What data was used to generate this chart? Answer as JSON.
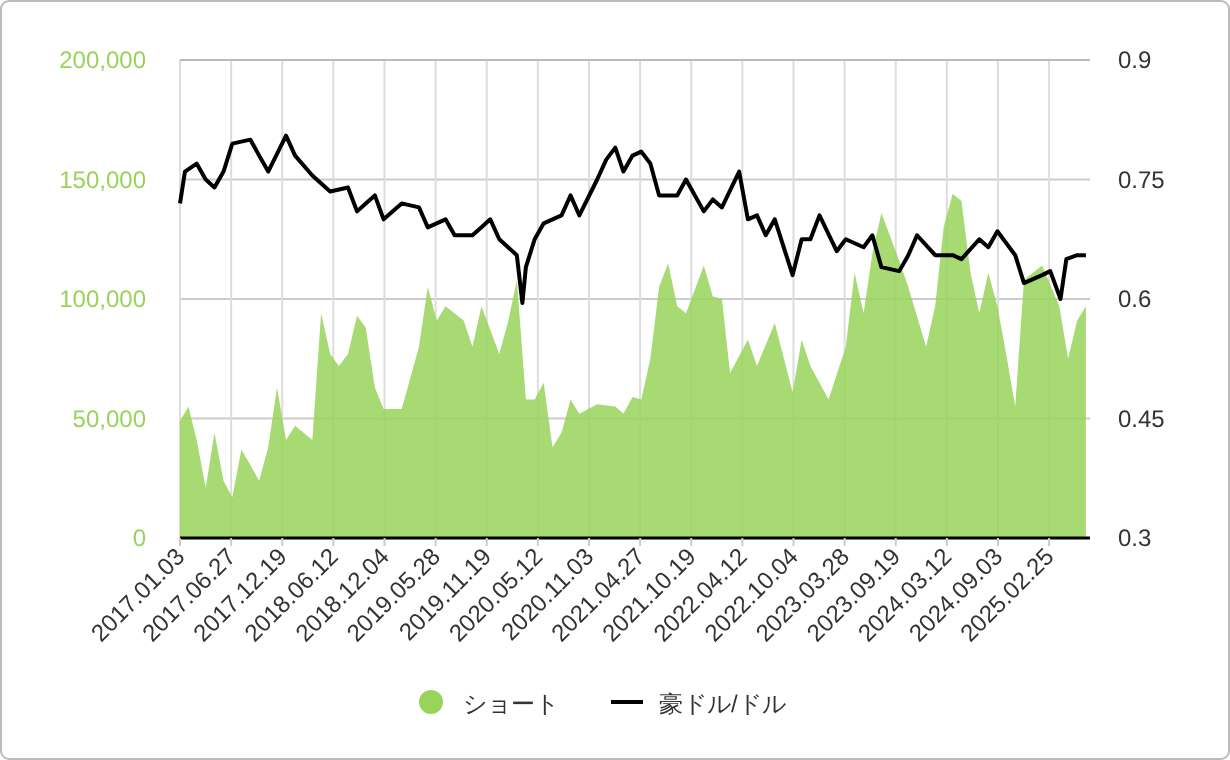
{
  "chart_data": {
    "type": "area",
    "xlim": [
      "2017-01-03",
      "2025-07-15"
    ],
    "xticks": [
      {
        "value": "2017-01-03",
        "label": "2017.01.03"
      },
      {
        "value": "2017-06-27",
        "label": "2017.06.27"
      },
      {
        "value": "2017-12-19",
        "label": "2017.12.19"
      },
      {
        "value": "2018-06-12",
        "label": "2018.06.12"
      },
      {
        "value": "2018-12-04",
        "label": "2018.12.04"
      },
      {
        "value": "2019-05-28",
        "label": "2019.05.28"
      },
      {
        "value": "2019-11-19",
        "label": "2019.11.19"
      },
      {
        "value": "2020-05-12",
        "label": "2020.05.12"
      },
      {
        "value": "2020-11-03",
        "label": "2020.11.03"
      },
      {
        "value": "2021-04-27",
        "label": "2021.04.27"
      },
      {
        "value": "2021-10-19",
        "label": "2021.10.19"
      },
      {
        "value": "2022-04-12",
        "label": "2022.04.12"
      },
      {
        "value": "2022-10-04",
        "label": "2022.10.04"
      },
      {
        "value": "2023-03-28",
        "label": "2023.03.28"
      },
      {
        "value": "2023-09-19",
        "label": "2023.09.19"
      },
      {
        "value": "2024-03-12",
        "label": "2024.03.12"
      },
      {
        "value": "2024-09-03",
        "label": "2024.09.03"
      },
      {
        "value": "2025-02-25",
        "label": "2025.02.25"
      }
    ],
    "ylim": [
      0,
      200000
    ],
    "yticks": [
      {
        "value": 0,
        "label": "0"
      },
      {
        "value": 50000,
        "label": "50,000"
      },
      {
        "value": 100000,
        "label": "100,000"
      },
      {
        "value": 150000,
        "label": "150,000"
      },
      {
        "value": 200000,
        "label": "200,000"
      }
    ],
    "y2lim": [
      0.3,
      0.9
    ],
    "y2ticks": [
      0.3,
      0.45,
      0.6,
      0.75,
      0.9
    ],
    "grid": true,
    "legend": "bottom",
    "series": [
      {
        "name": "ショート",
        "color": "#99d35a",
        "x": [
          "2017-01-03",
          "2017-02",
          "2017-03",
          "2017-04",
          "2017-05",
          "2017-06",
          "2017-07",
          "2017-08",
          "2017-10",
          "2017-11",
          "2017-12",
          "2018-01",
          "2018-02",
          "2018-04",
          "2018-05",
          "2018-06",
          "2018-07",
          "2018-08",
          "2018-09",
          "2018-10",
          "2018-11",
          "2018-12",
          "2019-02",
          "2019-04",
          "2019-05",
          "2019-06",
          "2019-07",
          "2019-09",
          "2019-10",
          "2019-11",
          "2020-01",
          "2020-02",
          "2020-03",
          "2020-04",
          "2020-05",
          "2020-06",
          "2020-07",
          "2020-08",
          "2020-09",
          "2020-10",
          "2020-12",
          "2021-02",
          "2021-03",
          "2021-04",
          "2021-05",
          "2021-06",
          "2021-07",
          "2021-08",
          "2021-09",
          "2021-10",
          "2021-12",
          "2022-01",
          "2022-02",
          "2022-03",
          "2022-05",
          "2022-06",
          "2022-08",
          "2022-10",
          "2022-11",
          "2022-12",
          "2023-02",
          "2023-04",
          "2023-05",
          "2023-06",
          "2023-07",
          "2023-08",
          "2023-10",
          "2023-11",
          "2024-01",
          "2024-02",
          "2024-03",
          "2024-04",
          "2024-05",
          "2024-06",
          "2024-07",
          "2024-08",
          "2024-09",
          "2024-10",
          "2024-11",
          "2024-12",
          "2025-02",
          "2025-04",
          "2025-05",
          "2025-06",
          "2025-07"
        ],
        "values": [
          49000,
          55000,
          41000,
          21000,
          44000,
          24000,
          17000,
          37000,
          24000,
          38000,
          63000,
          41000,
          47000,
          41000,
          94000,
          77000,
          72000,
          77000,
          93000,
          88000,
          63000,
          54000,
          54000,
          80000,
          105000,
          91000,
          97000,
          91000,
          80000,
          97000,
          77000,
          91000,
          108000,
          58000,
          58000,
          65000,
          38000,
          44000,
          58000,
          52000,
          56000,
          55000,
          52000,
          59000,
          58000,
          75000,
          105000,
          115000,
          97000,
          94000,
          114000,
          101000,
          100000,
          69000,
          83000,
          72000,
          90000,
          61000,
          83000,
          72000,
          58000,
          80000,
          111000,
          94000,
          119000,
          136000,
          116000,
          105000,
          80000,
          97000,
          130000,
          144000,
          141000,
          111000,
          94000,
          111000,
          97000,
          77000,
          55000,
          108000,
          114000,
          97000,
          75000,
          91000,
          97000
        ]
      },
      {
        "name": "豪ドル/ドル",
        "type": "line",
        "axis": "y2",
        "color": "#000000",
        "line_style": "solid",
        "x": [
          "2017-01-03",
          "2017-01-20",
          "2017-03",
          "2017-04",
          "2017-05",
          "2017-06",
          "2017-07",
          "2017-09",
          "2017-10",
          "2017-11",
          "2018-01",
          "2018-02",
          "2018-04",
          "2018-06",
          "2018-08",
          "2018-09",
          "2018-10",
          "2018-11",
          "2018-12",
          "2019-02",
          "2019-04",
          "2019-05",
          "2019-07",
          "2019-08",
          "2019-10",
          "2019-11",
          "2019-12",
          "2020-01",
          "2020-03-01",
          "2020-03-20",
          "2020-04",
          "2020-05",
          "2020-06",
          "2020-08",
          "2020-09",
          "2020-10",
          "2020-12",
          "2021-01",
          "2021-02",
          "2021-03",
          "2021-04",
          "2021-05",
          "2021-06",
          "2021-07",
          "2021-09",
          "2021-10",
          "2021-12",
          "2022-01",
          "2022-02",
          "2022-04",
          "2022-05",
          "2022-06",
          "2022-07",
          "2022-08",
          "2022-10",
          "2022-11",
          "2022-12",
          "2023-01",
          "2023-03",
          "2023-04",
          "2023-06",
          "2023-07",
          "2023-08",
          "2023-10",
          "2023-11",
          "2023-12",
          "2024-02",
          "2024-04",
          "2024-05",
          "2024-07",
          "2024-08",
          "2024-09",
          "2024-11",
          "2024-12",
          "2025-02",
          "2025-03",
          "2025-04-05",
          "2025-04-25",
          "2025-06",
          "2025-07"
        ],
        "values": [
          0.72,
          0.76,
          0.77,
          0.75,
          0.74,
          0.76,
          0.795,
          0.8,
          0.78,
          0.76,
          0.805,
          0.78,
          0.755,
          0.735,
          0.74,
          0.71,
          0.72,
          0.73,
          0.7,
          0.72,
          0.715,
          0.69,
          0.7,
          0.68,
          0.68,
          0.69,
          0.7,
          0.675,
          0.655,
          0.595,
          0.64,
          0.675,
          0.695,
          0.705,
          0.73,
          0.705,
          0.75,
          0.775,
          0.79,
          0.76,
          0.78,
          0.785,
          0.77,
          0.73,
          0.73,
          0.75,
          0.71,
          0.725,
          0.715,
          0.76,
          0.7,
          0.705,
          0.68,
          0.7,
          0.63,
          0.675,
          0.675,
          0.705,
          0.66,
          0.675,
          0.665,
          0.68,
          0.64,
          0.635,
          0.655,
          0.68,
          0.655,
          0.655,
          0.65,
          0.675,
          0.665,
          0.685,
          0.655,
          0.62,
          0.63,
          0.635,
          0.6,
          0.65,
          0.655,
          0.655
        ]
      }
    ]
  }
}
